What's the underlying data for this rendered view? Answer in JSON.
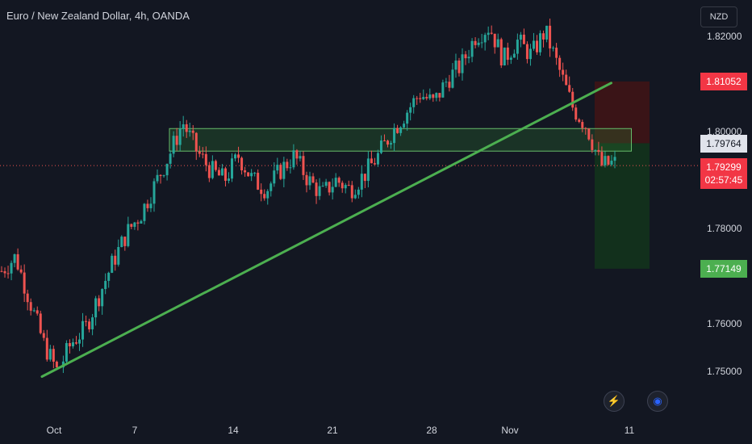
{
  "header": {
    "title": "Euro / New Zealand Dollar, 4h, OANDA"
  },
  "toolbar": {
    "currency_label": "NZD",
    "lightning_icon": "lightning-icon",
    "globe_icon": "globe-icon"
  },
  "colors": {
    "background": "#131722",
    "up": "#26a69a",
    "down": "#ef5350",
    "trendline": "#4caf50",
    "zone_fill": "#2e7d32",
    "stop_fill": "#3a1417",
    "target_fill": "#12301c"
  },
  "price_tags": {
    "stop": "1.81052",
    "entry": "1.79764",
    "current_price": "1.79299",
    "countdown": "02:57:45",
    "target": "1.77149"
  },
  "chart_data": {
    "type": "candlestick",
    "title": "Euro / New Zealand Dollar, 4h, OANDA",
    "y_axis": {
      "ticks": [
        "1.82000",
        "1.80000",
        "1.78000",
        "1.76000",
        "1.75000"
      ],
      "range": [
        1.74,
        1.8275
      ]
    },
    "x_axis": {
      "ticks": [
        "Oct",
        "7",
        "14",
        "21",
        "28",
        "Nov",
        "11"
      ]
    },
    "trendline": {
      "from": {
        "date": "Oct 1",
        "price": 1.749
      },
      "to": {
        "date": "Nov 9",
        "price": 1.8102
      }
    },
    "resistance_zone": {
      "from": "Oct 9",
      "to": "Nov 11",
      "high": 1.8007,
      "low": 1.796
    },
    "short_position": {
      "entry": 1.79764,
      "stop": 1.81052,
      "target": 1.77149,
      "from": "Nov 8",
      "to": "Nov 12"
    },
    "current_price": 1.79299,
    "path": [
      1.771,
      1.774,
      1.765,
      1.756,
      1.75,
      1.756,
      1.759,
      1.766,
      1.773,
      1.779,
      1.783,
      1.789,
      1.795,
      1.802,
      1.796,
      1.792,
      1.79,
      1.795,
      1.79,
      1.788,
      1.792,
      1.795,
      1.79,
      1.787,
      1.79,
      1.788,
      1.791,
      1.795,
      1.8,
      1.804,
      1.808,
      1.806,
      1.811,
      1.814,
      1.82,
      1.822,
      1.815,
      1.819,
      1.816,
      1.821,
      1.813,
      1.805,
      1.801,
      1.793,
      1.7935
    ]
  }
}
